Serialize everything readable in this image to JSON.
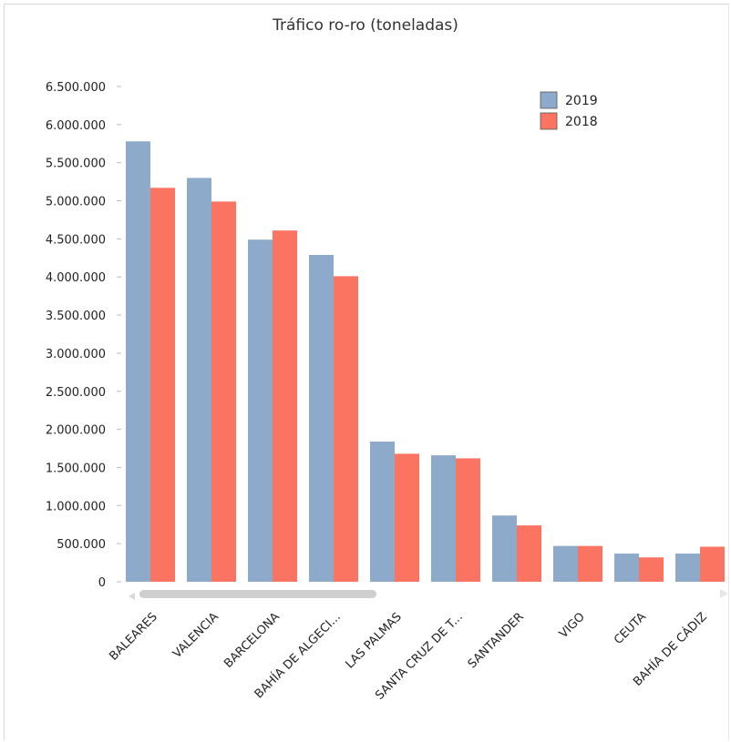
{
  "chart_data": {
    "type": "bar",
    "title": "Tráfico ro-ro (toneladas)",
    "categories": [
      "BALEARES",
      "VALENCIA",
      "BARCELONA",
      "BAHÍA DE ALGECI...",
      "LAS PALMAS",
      "SANTA CRUZ DE T...",
      "SANTANDER",
      "VIGO",
      "CEUTA",
      "BAHÍA DE CÁDIZ"
    ],
    "series": [
      {
        "name": "2019",
        "color": "#8eaacb",
        "values": [
          5780000,
          5300000,
          4490000,
          4290000,
          1840000,
          1660000,
          870000,
          470000,
          370000,
          370000
        ]
      },
      {
        "name": "2018",
        "color": "#fb7462",
        "values": [
          5170000,
          4990000,
          4610000,
          4010000,
          1680000,
          1620000,
          740000,
          470000,
          320000,
          460000
        ]
      }
    ],
    "ylim": [
      0,
      6500000
    ],
    "yticks": [
      "0",
      "500.000",
      "1.000.000",
      "1.500.000",
      "2.000.000",
      "2.500.000",
      "3.000.000",
      "3.500.000",
      "4.000.000",
      "4.500.000",
      "5.000.000",
      "5.500.000",
      "6.000.000",
      "6.500.000"
    ],
    "xlabel": "",
    "ylabel": "",
    "legend_position": "top-right",
    "grid": false
  },
  "scrollbar": {
    "left_arrow_icon": "left-arrow-icon",
    "right_arrow_icon": "right-arrow-icon"
  }
}
